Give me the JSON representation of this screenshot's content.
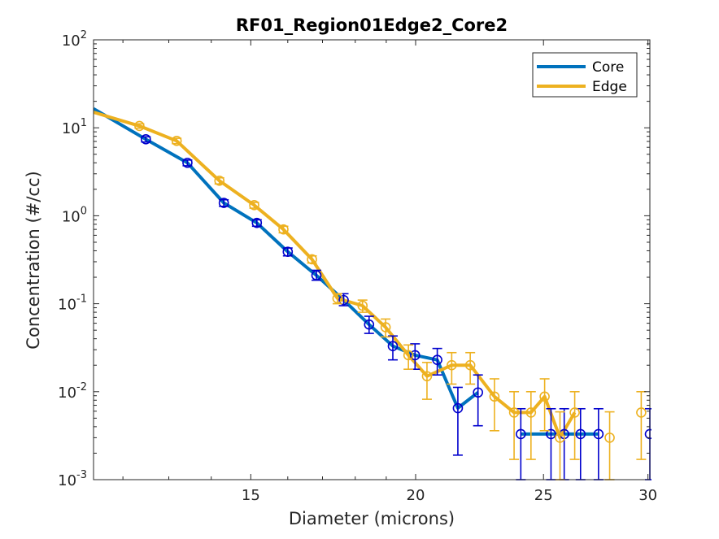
{
  "chart_data": {
    "type": "line",
    "title": "RF01_Region01Edge2_Core2",
    "xlabel": "Diameter (microns)",
    "ylabel": "Concentration (#/cc)",
    "xscale": "log",
    "yscale": "log",
    "xlim": [
      11.4,
      30.1
    ],
    "ylim": [
      0.001,
      100
    ],
    "xticks": [
      15,
      20,
      25,
      30
    ],
    "xtick_labels": [
      "15",
      "20",
      "25",
      "30"
    ],
    "yticks": [
      0.001,
      0.01,
      0.1,
      1,
      10,
      100
    ],
    "ytick_labels": [
      {
        "base": "10",
        "exp": "-3"
      },
      {
        "base": "10",
        "exp": "-2"
      },
      {
        "base": "10",
        "exp": "-1"
      },
      {
        "base": "10",
        "exp": "0"
      },
      {
        "base": "10",
        "exp": "1"
      },
      {
        "base": "10",
        "exp": "2"
      }
    ],
    "legend_position": "top-right",
    "grid": false,
    "series": [
      {
        "name": "Core",
        "line_color": "#0072BD",
        "marker_color": "#0000CD",
        "points": [
          {
            "x": 11.4,
            "y": 16.5
          },
          {
            "x": 12.49,
            "y": 7.4,
            "lo": 6.9,
            "hi": 7.9
          },
          {
            "x": 13.43,
            "y": 4.0,
            "lo": 3.7,
            "hi": 4.3
          },
          {
            "x": 14.31,
            "y": 1.4,
            "lo": 1.28,
            "hi": 1.52
          },
          {
            "x": 15.16,
            "y": 0.83,
            "lo": 0.76,
            "hi": 0.9
          },
          {
            "x": 16.0,
            "y": 0.39,
            "lo": 0.35,
            "hi": 0.43
          },
          {
            "x": 16.82,
            "y": 0.21,
            "lo": 0.185,
            "hi": 0.24
          },
          {
            "x": 17.64,
            "y": 0.11,
            "lo": 0.095,
            "hi": 0.13
          },
          {
            "x": 18.44,
            "y": 0.058,
            "lo": 0.046,
            "hi": 0.072
          },
          {
            "x": 19.22,
            "y": 0.033,
            "lo": 0.023,
            "hi": 0.043
          },
          {
            "x": 19.98,
            "y": 0.026,
            "lo": 0.018,
            "hi": 0.035
          },
          {
            "x": 20.77,
            "y": 0.023,
            "lo": 0.0155,
            "hi": 0.031
          },
          {
            "x": 21.53,
            "y": 0.0065,
            "lo": 0.0019,
            "hi": 0.0112
          },
          {
            "x": 22.3,
            "y": 0.0098,
            "lo": 0.0041,
            "hi": 0.0155
          },
          {
            "x": 24.03,
            "y": 0.0033,
            "lo": 0.001,
            "hi": 0.0064
          },
          {
            "x": 25.33,
            "y": 0.0033,
            "lo": 0.001,
            "hi": 0.0064
          },
          {
            "x": 25.92,
            "y": 0.0033,
            "lo": 0.001,
            "hi": 0.0064
          },
          {
            "x": 26.67,
            "y": 0.0033,
            "lo": 0.001,
            "hi": 0.0064
          },
          {
            "x": 27.52,
            "y": 0.0033,
            "lo": 0.001,
            "hi": 0.0064
          },
          {
            "x": 30.1,
            "y": 0.0033,
            "lo": 0.001,
            "hi": 0.0064
          }
        ],
        "line_segments": [
          [
            0,
            13
          ],
          [
            14,
            18
          ]
        ]
      },
      {
        "name": "Edge",
        "line_color": "#EDB120",
        "marker_color": "#EDB120",
        "points": [
          {
            "x": 11.4,
            "y": 15.0
          },
          {
            "x": 12.35,
            "y": 10.5,
            "lo": 9.9,
            "hi": 11.1
          },
          {
            "x": 13.18,
            "y": 7.1,
            "lo": 6.6,
            "hi": 7.6
          },
          {
            "x": 14.2,
            "y": 2.5,
            "lo": 2.3,
            "hi": 2.7
          },
          {
            "x": 15.09,
            "y": 1.32,
            "lo": 1.22,
            "hi": 1.42
          },
          {
            "x": 15.88,
            "y": 0.7,
            "lo": 0.64,
            "hi": 0.76
          },
          {
            "x": 16.69,
            "y": 0.32,
            "lo": 0.29,
            "hi": 0.35
          },
          {
            "x": 17.45,
            "y": 0.115,
            "lo": 0.1,
            "hi": 0.13
          },
          {
            "x": 18.23,
            "y": 0.095,
            "lo": 0.08,
            "hi": 0.11
          },
          {
            "x": 18.98,
            "y": 0.054,
            "lo": 0.042,
            "hi": 0.067
          },
          {
            "x": 19.75,
            "y": 0.026,
            "lo": 0.018,
            "hi": 0.034
          },
          {
            "x": 20.4,
            "y": 0.015,
            "lo": 0.0082,
            "hi": 0.0215
          },
          {
            "x": 21.3,
            "y": 0.02,
            "lo": 0.0122,
            "hi": 0.0278
          },
          {
            "x": 22.0,
            "y": 0.02,
            "lo": 0.0122,
            "hi": 0.0278
          },
          {
            "x": 22.95,
            "y": 0.0088,
            "lo": 0.0036,
            "hi": 0.014
          },
          {
            "x": 23.75,
            "y": 0.0058,
            "lo": 0.0017,
            "hi": 0.01
          },
          {
            "x": 24.46,
            "y": 0.0058,
            "lo": 0.0017,
            "hi": 0.01
          },
          {
            "x": 25.05,
            "y": 0.0088,
            "lo": 0.0036,
            "hi": 0.014
          },
          {
            "x": 25.73,
            "y": 0.003,
            "lo": 0.001,
            "hi": 0.0059
          },
          {
            "x": 26.4,
            "y": 0.0058,
            "lo": 0.0017,
            "hi": 0.01
          },
          {
            "x": 28.06,
            "y": 0.003,
            "lo": 0.001,
            "hi": 0.0059
          },
          {
            "x": 29.65,
            "y": 0.0058,
            "lo": 0.0017,
            "hi": 0.01
          }
        ],
        "line_segments": [
          [
            0,
            19
          ]
        ]
      }
    ]
  }
}
